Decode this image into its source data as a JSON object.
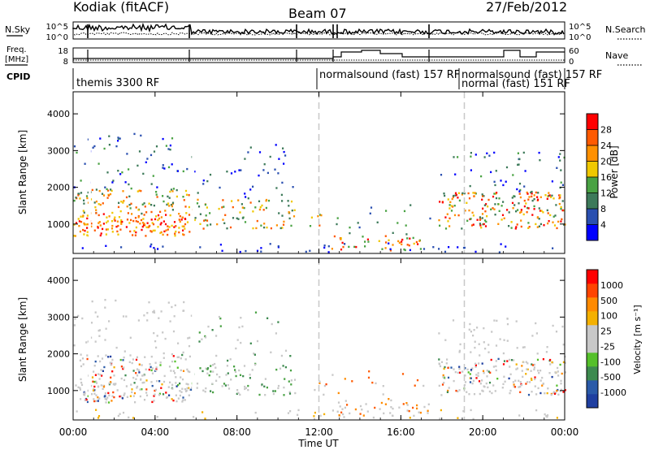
{
  "header": {
    "station": "Kodiak (fitACF)",
    "beam": "Beam 07",
    "date": "27/Feb/2012"
  },
  "top_panels": {
    "nsky_label": "N.Sky",
    "nsky_ticks": [
      "10^5",
      "10^0"
    ],
    "nsearch_label": "N.Search",
    "nsearch_ticks": [
      "10^5",
      "10^0"
    ],
    "freq_label_1": "Freq.",
    "freq_label_2": "[MHz]",
    "freq_ticks": [
      "18",
      "8"
    ],
    "nave_label": "Nave",
    "nave_ticks": [
      "60",
      "0"
    ],
    "cpid_label": "CPID",
    "cpid_segments": [
      {
        "text": "themis 3300 RF"
      },
      {
        "text": "normalsound (fast) 157 RF"
      },
      {
        "text": "normalsound (fast) 157 RF"
      },
      {
        "text": "normal (fast) 151 RF"
      }
    ]
  },
  "colors": {
    "power_scale": [
      "#0000ff",
      "#2a4fb0",
      "#3d7a5a",
      "#49a243",
      "#f0c800",
      "#ff9000",
      "#ff5a00",
      "#ff0000"
    ],
    "velocity_scale": [
      "#ff0000",
      "#ff4400",
      "#ff8a00",
      "#f4b000",
      "#c8c8c8",
      "#c8c8c8",
      "#55c02a",
      "#3d8a4f",
      "#2a5aa8",
      "#1f3fa0"
    ]
  },
  "chart_data": [
    {
      "type": "heatmap",
      "name_printed": "",
      "ylabel": "Slant Range [km]",
      "yticks": [
        "1000",
        "2000",
        "3000",
        "4000"
      ],
      "ylim": [
        200,
        4600
      ],
      "xlim": [
        "00:00",
        "24:00"
      ],
      "xticks": [
        "00:00",
        "04:00",
        "08:00",
        "12:00",
        "16:00",
        "20:00",
        "00:00"
      ],
      "colorbar_label": "Power [dB]",
      "colorbar_ticks": [
        "4",
        "8",
        "12",
        "16",
        "20",
        "24",
        "28"
      ],
      "colorbar_range": [
        0,
        32
      ]
    },
    {
      "type": "heatmap",
      "ylabel": "Slant Range [km]",
      "yticks": [
        "1000",
        "2000",
        "3000",
        "4000"
      ],
      "ylim": [
        200,
        4600
      ],
      "xlabel": "Time UT",
      "xticks": [
        "00:00",
        "04:00",
        "08:00",
        "12:00",
        "16:00",
        "20:00",
        "00:00"
      ],
      "colorbar_label": "Velocity [m s⁻¹]",
      "colorbar_ticks": [
        "1000",
        "500",
        "100",
        "25",
        "-25",
        "-100",
        "-500",
        "-1000"
      ]
    }
  ]
}
